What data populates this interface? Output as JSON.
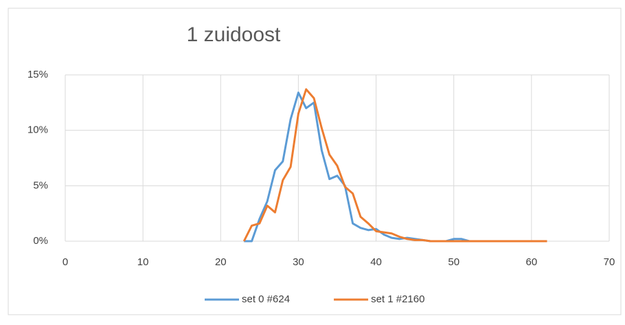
{
  "chart_data": {
    "type": "line",
    "title": "1 zuidoost",
    "x": [
      23,
      24,
      25,
      26,
      27,
      28,
      29,
      30,
      31,
      32,
      33,
      34,
      35,
      36,
      37,
      38,
      39,
      40,
      41,
      42,
      43,
      44,
      45,
      46,
      47,
      48,
      49,
      50,
      51,
      52,
      53,
      54,
      55,
      56,
      57,
      58,
      59,
      60,
      61,
      62
    ],
    "series": [
      {
        "name": "set 0 #624",
        "color": "#5b9bd5",
        "values": [
          0,
          0,
          2,
          3.6,
          6.4,
          7.2,
          11,
          13.4,
          12,
          12.5,
          8.2,
          5.6,
          5.9,
          5,
          1.6,
          1.2,
          1,
          1.1,
          0.6,
          0.3,
          0.2,
          0.3,
          0.2,
          0.1,
          0,
          0,
          0,
          0.2,
          0.2,
          0,
          0,
          0,
          0,
          0,
          0,
          0,
          0,
          0,
          0,
          0
        ]
      },
      {
        "name": "set 1 #2160",
        "color": "#ed7d31",
        "values": [
          0,
          1.4,
          1.6,
          3.2,
          2.6,
          5.5,
          6.7,
          11.5,
          13.7,
          12.9,
          10.2,
          7.8,
          6.8,
          4.9,
          4.3,
          2.2,
          1.6,
          0.9,
          0.8,
          0.7,
          0.4,
          0.2,
          0.1,
          0.1,
          0,
          0,
          0,
          0,
          0,
          0,
          0,
          0,
          0,
          0,
          0,
          0,
          0,
          0,
          0,
          0
        ]
      }
    ],
    "xlim": [
      0,
      70
    ],
    "xticks": [
      0,
      10,
      20,
      30,
      40,
      50,
      60,
      70
    ],
    "ylim": [
      0,
      15
    ],
    "yticks": [
      {
        "value": 0,
        "label": "0%"
      },
      {
        "value": 5,
        "label": "5%"
      },
      {
        "value": 10,
        "label": "10%"
      },
      {
        "value": 15,
        "label": "15%"
      }
    ],
    "grid": true,
    "legend": "bottom"
  }
}
